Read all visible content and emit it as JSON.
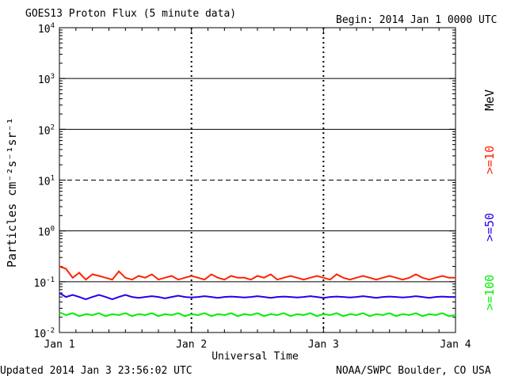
{
  "title": "GOES13 Proton Flux (5 minute data)",
  "begin": "Begin: 2014 Jan 1 0000 UTC",
  "updated": "Updated 2014 Jan  3 23:56:02 UTC",
  "credit": "NOAA/SWPC Boulder, CO USA",
  "ylabel": "Particles cm⁻²s⁻¹sr⁻¹",
  "energy_unit": "MeV",
  "colors": {
    "ge10": "#ff2200",
    "ge50": "#2200ee",
    "ge100": "#00ee00",
    "axis": "#000000"
  },
  "chart_data": {
    "type": "line",
    "xlabel": "Universal Time",
    "x_tick_labels": [
      "Jan 1",
      "Jan 2",
      "Jan 3",
      "Jan 4"
    ],
    "xlim_days": [
      0,
      3
    ],
    "yscale": "log",
    "ylim": [
      0.01,
      10000
    ],
    "y_tick_labels": [
      {
        "base": "10",
        "exp": "-2"
      },
      {
        "base": "10",
        "exp": "-1"
      },
      {
        "base": "10",
        "exp": "0"
      },
      {
        "base": "10",
        "exp": "1"
      },
      {
        "base": "10",
        "exp": "2"
      },
      {
        "base": "10",
        "exp": "3"
      },
      {
        "base": "10",
        "exp": "4"
      }
    ],
    "grid_y_solid": [
      0.1,
      1,
      100,
      1000
    ],
    "grid_y_dashed": [
      10
    ],
    "series": [
      {
        "name": ">=10",
        "x_days": [
          0,
          0.05,
          0.1,
          0.15,
          0.2,
          0.25,
          0.3,
          0.35,
          0.4,
          0.45,
          0.5,
          0.55,
          0.6,
          0.65,
          0.7,
          0.75,
          0.8,
          0.85,
          0.9,
          0.95,
          1,
          1.05,
          1.1,
          1.15,
          1.2,
          1.25,
          1.3,
          1.35,
          1.4,
          1.45,
          1.5,
          1.55,
          1.6,
          1.65,
          1.7,
          1.75,
          1.8,
          1.85,
          1.9,
          1.95,
          2,
          2.05,
          2.1,
          2.15,
          2.2,
          2.25,
          2.3,
          2.35,
          2.4,
          2.45,
          2.5,
          2.55,
          2.6,
          2.65,
          2.7,
          2.75,
          2.8,
          2.85,
          2.9,
          2.95,
          3
        ],
        "values": [
          0.2,
          0.18,
          0.12,
          0.15,
          0.11,
          0.14,
          0.13,
          0.12,
          0.11,
          0.16,
          0.12,
          0.11,
          0.13,
          0.12,
          0.14,
          0.11,
          0.12,
          0.13,
          0.11,
          0.12,
          0.13,
          0.12,
          0.11,
          0.14,
          0.12,
          0.11,
          0.13,
          0.12,
          0.12,
          0.11,
          0.13,
          0.12,
          0.14,
          0.11,
          0.12,
          0.13,
          0.12,
          0.11,
          0.12,
          0.13,
          0.12,
          0.11,
          0.14,
          0.12,
          0.11,
          0.12,
          0.13,
          0.12,
          0.11,
          0.12,
          0.13,
          0.12,
          0.11,
          0.12,
          0.14,
          0.12,
          0.11,
          0.12,
          0.13,
          0.12,
          0.12
        ]
      },
      {
        "name": ">=50",
        "x_days": [
          0,
          0.05,
          0.1,
          0.15,
          0.2,
          0.25,
          0.3,
          0.35,
          0.4,
          0.45,
          0.5,
          0.55,
          0.6,
          0.65,
          0.7,
          0.75,
          0.8,
          0.85,
          0.9,
          0.95,
          1,
          1.05,
          1.1,
          1.15,
          1.2,
          1.25,
          1.3,
          1.35,
          1.4,
          1.45,
          1.5,
          1.55,
          1.6,
          1.65,
          1.7,
          1.75,
          1.8,
          1.85,
          1.9,
          1.95,
          2,
          2.05,
          2.1,
          2.15,
          2.2,
          2.25,
          2.3,
          2.35,
          2.4,
          2.45,
          2.5,
          2.55,
          2.6,
          2.65,
          2.7,
          2.75,
          2.8,
          2.85,
          2.9,
          2.95,
          3
        ],
        "values": [
          0.06,
          0.05,
          0.055,
          0.05,
          0.045,
          0.05,
          0.055,
          0.05,
          0.045,
          0.05,
          0.055,
          0.05,
          0.048,
          0.05,
          0.052,
          0.05,
          0.047,
          0.05,
          0.053,
          0.05,
          0.049,
          0.05,
          0.052,
          0.05,
          0.048,
          0.05,
          0.051,
          0.05,
          0.049,
          0.05,
          0.052,
          0.05,
          0.048,
          0.05,
          0.051,
          0.05,
          0.049,
          0.05,
          0.052,
          0.05,
          0.048,
          0.05,
          0.051,
          0.05,
          0.049,
          0.05,
          0.052,
          0.05,
          0.048,
          0.05,
          0.051,
          0.05,
          0.049,
          0.05,
          0.052,
          0.05,
          0.048,
          0.05,
          0.051,
          0.05,
          0.05
        ]
      },
      {
        "name": ">=100",
        "x_days": [
          0,
          0.05,
          0.1,
          0.15,
          0.2,
          0.25,
          0.3,
          0.35,
          0.4,
          0.45,
          0.5,
          0.55,
          0.6,
          0.65,
          0.7,
          0.75,
          0.8,
          0.85,
          0.9,
          0.95,
          1,
          1.05,
          1.1,
          1.15,
          1.2,
          1.25,
          1.3,
          1.35,
          1.4,
          1.45,
          1.5,
          1.55,
          1.6,
          1.65,
          1.7,
          1.75,
          1.8,
          1.85,
          1.9,
          1.95,
          2,
          2.05,
          2.1,
          2.15,
          2.2,
          2.25,
          2.3,
          2.35,
          2.4,
          2.45,
          2.5,
          2.55,
          2.6,
          2.65,
          2.7,
          2.75,
          2.8,
          2.85,
          2.9,
          2.95,
          3
        ],
        "values": [
          0.025,
          0.022,
          0.024,
          0.021,
          0.023,
          0.022,
          0.024,
          0.021,
          0.023,
          0.022,
          0.024,
          0.021,
          0.023,
          0.022,
          0.024,
          0.021,
          0.023,
          0.022,
          0.024,
          0.021,
          0.023,
          0.022,
          0.024,
          0.021,
          0.023,
          0.022,
          0.024,
          0.021,
          0.023,
          0.022,
          0.024,
          0.021,
          0.023,
          0.022,
          0.024,
          0.021,
          0.023,
          0.022,
          0.024,
          0.021,
          0.023,
          0.022,
          0.024,
          0.021,
          0.023,
          0.022,
          0.024,
          0.021,
          0.023,
          0.022,
          0.024,
          0.021,
          0.023,
          0.022,
          0.024,
          0.021,
          0.023,
          0.022,
          0.024,
          0.021,
          0.022
        ]
      }
    ]
  }
}
